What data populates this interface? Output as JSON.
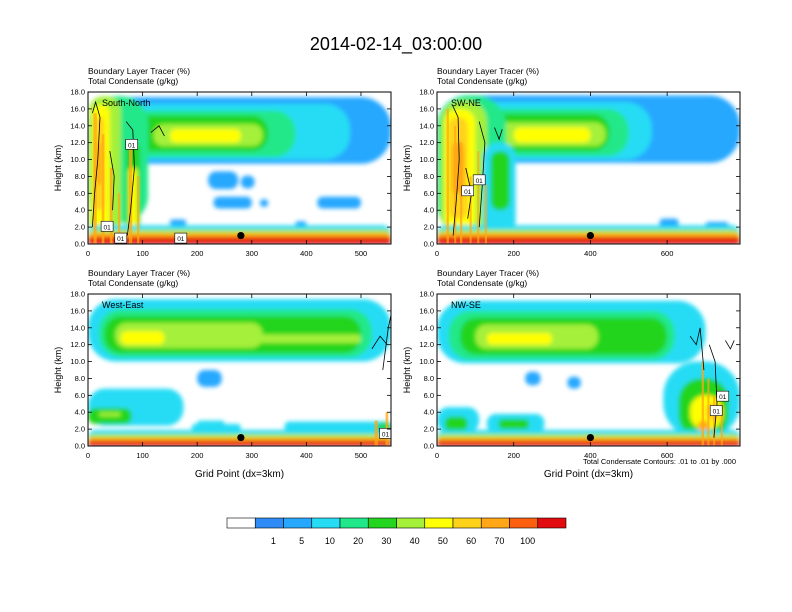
{
  "figure": {
    "title": "2014-02-14_03:00:00",
    "footnote": "Total Condensate Contours: .01 to .01 by .000",
    "colors": {
      "bins": [
        "#ffffff",
        "#2f8cf6",
        "#27a8ff",
        "#26dcf5",
        "#20e88a",
        "#23d51f",
        "#a4f03b",
        "#ffff06",
        "#ffd21a",
        "#ffa716",
        "#fd5f10",
        "#e20b10"
      ],
      "contour": "#000000"
    }
  },
  "colorbar": {
    "labels": [
      "1",
      "5",
      "10",
      "20",
      "30",
      "40",
      "50",
      "60",
      "70",
      "100"
    ]
  },
  "chart_data": [
    {
      "type": "heatmap",
      "panel_label": "South-North",
      "title_line1": "Boundary Layer Tracer   (%)",
      "title_line2": "Total Condensate   (g/kg)",
      "ylabel": "Height (km)",
      "xlabel": "",
      "xlim": [
        0,
        555
      ],
      "ylim": [
        0,
        18
      ],
      "xticks": [
        "0",
        "100",
        "200",
        "300",
        "400",
        "500"
      ],
      "xtick_values": [
        0,
        100,
        200,
        300,
        400,
        500
      ],
      "yticks": [
        "0.0",
        "2.0",
        "4.0",
        "6.0",
        "8.0",
        "10.0",
        "12.0",
        "14.0",
        "16.0",
        "18.0"
      ],
      "marker": {
        "x": 280,
        "y": 1.0
      },
      "contour_labels": [
        {
          "text": "01",
          "x": 80,
          "y": 11.8
        },
        {
          "text": "01",
          "x": 35,
          "y": 2.1
        },
        {
          "text": "01",
          "x": 60,
          "y": 0.7
        },
        {
          "text": "01",
          "x": 170,
          "y": 0.7
        }
      ]
    },
    {
      "type": "heatmap",
      "panel_label": "SW-NE",
      "title_line1": "Boundary Layer Tracer   (%)",
      "title_line2": "Total Condensate   (g/kg)",
      "ylabel": "Height (km)",
      "xlabel": "",
      "xlim": [
        0,
        790
      ],
      "ylim": [
        0,
        18
      ],
      "xticks": [
        "0",
        "200",
        "400",
        "600"
      ],
      "xtick_values": [
        0,
        200,
        400,
        600
      ],
      "yticks": [
        "0.0",
        "2.0",
        "4.0",
        "6.0",
        "8.0",
        "10.0",
        "12.0",
        "14.0",
        "16.0",
        "18.0"
      ],
      "marker": {
        "x": 400,
        "y": 1.0
      },
      "contour_labels": [
        {
          "text": "01",
          "x": 110,
          "y": 7.6
        },
        {
          "text": "01",
          "x": 80,
          "y": 6.3
        }
      ]
    },
    {
      "type": "heatmap",
      "panel_label": "West-East",
      "title_line1": "Boundary Layer Tracer   (%)",
      "title_line2": "Total Condensate   (g/kg)",
      "ylabel": "Height (km)",
      "xlabel": "Grid Point (dx=3km)",
      "xlim": [
        0,
        555
      ],
      "ylim": [
        0,
        18
      ],
      "xticks": [
        "0",
        "100",
        "200",
        "300",
        "400",
        "500"
      ],
      "xtick_values": [
        0,
        100,
        200,
        300,
        400,
        500
      ],
      "yticks": [
        "0.0",
        "2.0",
        "4.0",
        "6.0",
        "8.0",
        "10.0",
        "12.0",
        "14.0",
        "16.0",
        "18.0"
      ],
      "marker": {
        "x": 280,
        "y": 1.0
      },
      "contour_labels": [
        {
          "text": "01",
          "x": 545,
          "y": 1.5
        }
      ]
    },
    {
      "type": "heatmap",
      "panel_label": "NW-SE",
      "title_line1": "Boundary Layer Tracer   (%)",
      "title_line2": "Total Condensate   (g/kg)",
      "ylabel": "Height (km)",
      "xlabel": "Grid Point (dx=3km)",
      "xlim": [
        0,
        790
      ],
      "ylim": [
        0,
        18
      ],
      "xticks": [
        "0",
        "200",
        "400",
        "600"
      ],
      "xtick_values": [
        0,
        200,
        400,
        600
      ],
      "yticks": [
        "0.0",
        "2.0",
        "4.0",
        "6.0",
        "8.0",
        "10.0",
        "12.0",
        "14.0",
        "16.0",
        "18.0"
      ],
      "marker": {
        "x": 400,
        "y": 1.0
      },
      "contour_labels": [
        {
          "text": "01",
          "x": 745,
          "y": 5.9
        },
        {
          "text": "01",
          "x": 728,
          "y": 4.2
        }
      ]
    }
  ]
}
